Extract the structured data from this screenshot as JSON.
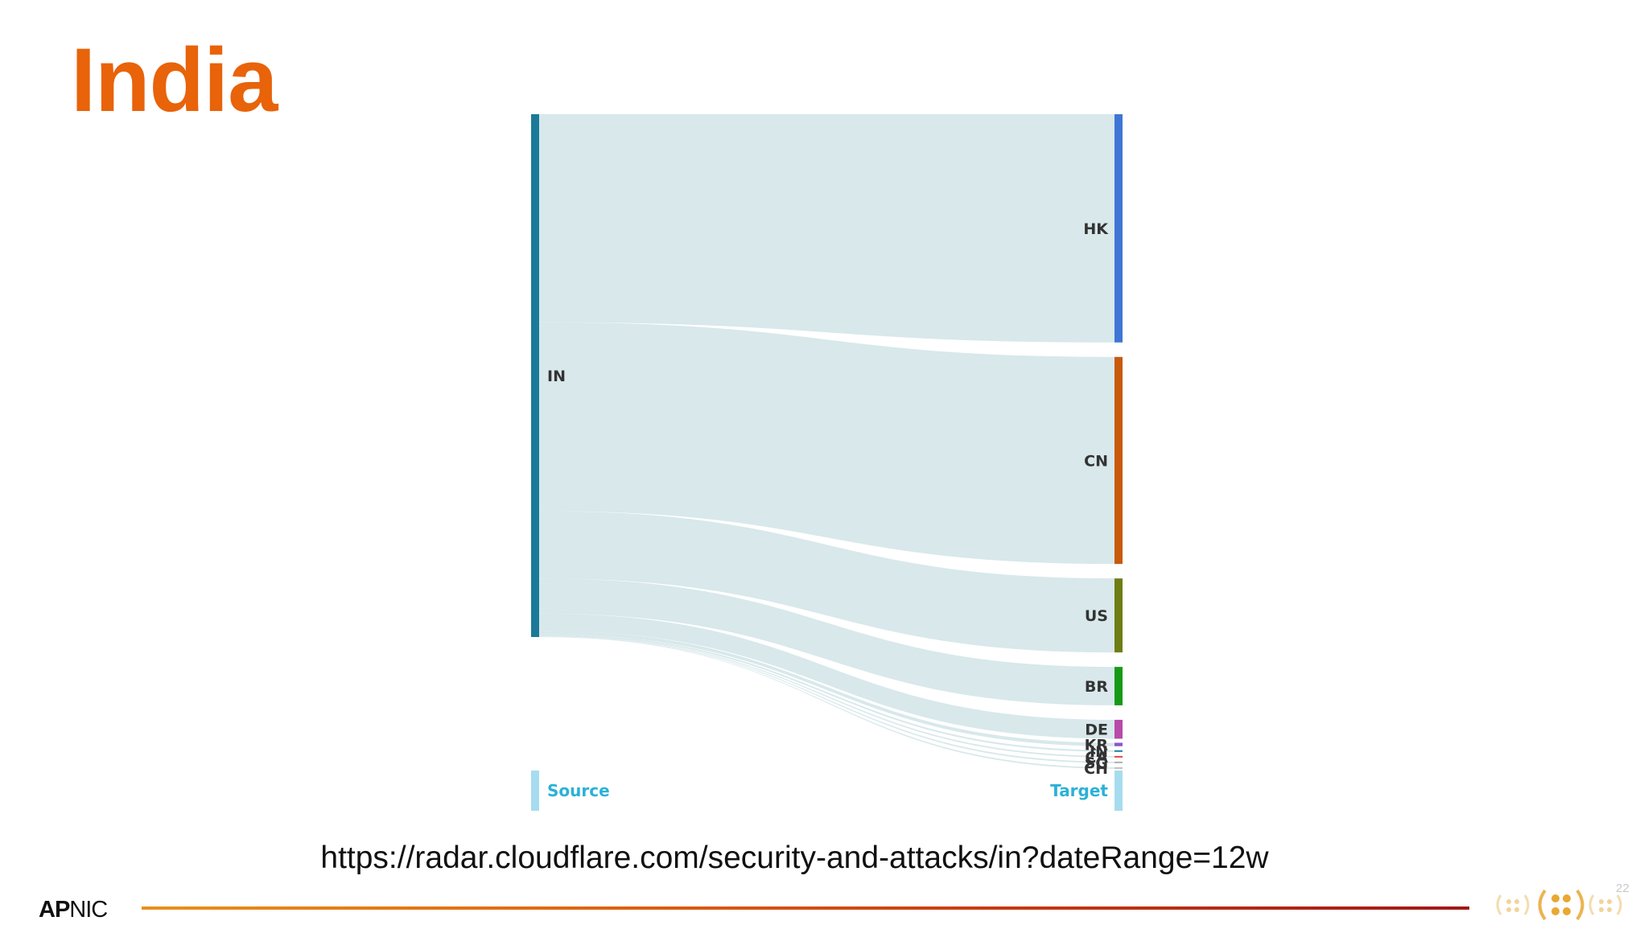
{
  "slide": {
    "title": "India",
    "title_color": "#e8630a",
    "url": "https://radar.cloudflare.com/security-and-attacks/in?dateRange=12w",
    "page_number": "22",
    "footer": {
      "logo_bold": "AP",
      "logo_regular": "NIC"
    }
  },
  "chart_data": {
    "type": "sankey",
    "title": "",
    "legend": {
      "source_label": "Source",
      "target_label": "Target",
      "color": "#a6dcef",
      "text_color": "#2bb1d8"
    },
    "link_color": "#d6e7ea",
    "source": {
      "label": "IN",
      "color": "#1b7a99"
    },
    "targets": [
      {
        "label": "HK",
        "value": 39.8,
        "color": "#3f76d6"
      },
      {
        "label": "CN",
        "value": 36.1,
        "color": "#c85a0a"
      },
      {
        "label": "US",
        "value": 12.9,
        "color": "#6e7d14"
      },
      {
        "label": "BR",
        "value": 6.7,
        "color": "#169a16"
      },
      {
        "label": "DE",
        "value": 3.3,
        "color": "#b84aa9"
      },
      {
        "label": "KR",
        "value": 0.6,
        "color": "#8c55c9"
      },
      {
        "label": "IN",
        "value": 0.3,
        "color": "#1f8aa0"
      },
      {
        "label": "CA",
        "value": 0.15,
        "color": "#e04848"
      },
      {
        "label": "SG",
        "value": 0.1,
        "color": "#b0b0b0"
      },
      {
        "label": "CH",
        "value": 0.05,
        "color": "#c0c0c0"
      }
    ]
  }
}
